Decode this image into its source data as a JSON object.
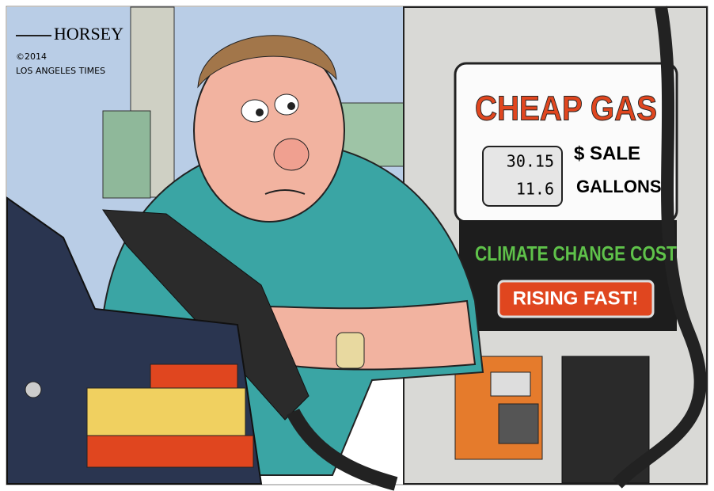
{
  "signature": {
    "artist": "HORSEY",
    "copyright": "©2014",
    "publisher": "LOS ANGELES TIMES"
  },
  "pump": {
    "headline": "CHEAP GAS",
    "sale": {
      "amount": 30.15,
      "label": "$ SALE"
    },
    "gallons": {
      "amount": 11.6,
      "label": "GALLONS"
    },
    "climate": {
      "label": "CLIMATE CHANGE COST",
      "status": "RISING FAST!"
    }
  }
}
